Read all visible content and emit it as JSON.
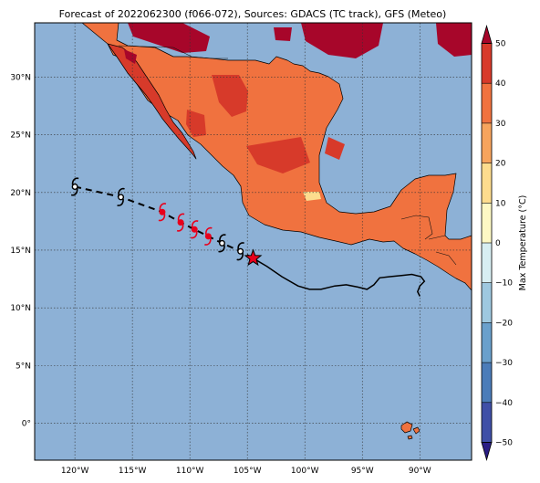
{
  "title": "Forecast of 2022062300 (f066-072), Sources: GDACS (TC track), GFS (Meteo)",
  "lon_ticks": [
    "120°W",
    "115°W",
    "110°W",
    "105°W",
    "100°W",
    "95°W",
    "90°W"
  ],
  "lat_ticks": [
    "30°N",
    "25°N",
    "20°N",
    "15°N",
    "10°N",
    "5°N",
    "0°"
  ],
  "colorbar": {
    "label": "Max Temperature (°C)",
    "ticks": [
      "50",
      "40",
      "30",
      "20",
      "10",
      "0",
      "−10",
      "−20",
      "−30",
      "−40",
      "−50"
    ],
    "colors": [
      "#2a1d84",
      "#3f4fa7",
      "#4b7cb9",
      "#6aa0cc",
      "#9ec8df",
      "#d7eef2",
      "#fdf8c4",
      "#fddc8e",
      "#f7a45d",
      "#f0723f",
      "#d73a2a",
      "#a7062a"
    ]
  },
  "map": {
    "ocean_color": "#8db1d6",
    "land_colors": [
      "#f0723f",
      "#d73a2a",
      "#a7062a",
      "#f7a45d",
      "#fddc8e"
    ],
    "extent": {
      "lon": [
        -123.5,
        -85.5
      ],
      "lat": [
        -3.2,
        34.7
      ]
    }
  },
  "tc_track": {
    "positions": [
      {
        "lon": -120.0,
        "lat": 20.5,
        "status": "past"
      },
      {
        "lon": -116.0,
        "lat": 19.6,
        "status": "past"
      },
      {
        "lon": -112.4,
        "lat": 18.3,
        "status": "forecast"
      },
      {
        "lon": -110.8,
        "lat": 17.4,
        "status": "forecast"
      },
      {
        "lon": -109.6,
        "lat": 16.8,
        "status": "forecast"
      },
      {
        "lon": -108.4,
        "lat": 16.2,
        "status": "forecast"
      },
      {
        "lon": -107.2,
        "lat": 15.6,
        "status": "past"
      },
      {
        "lon": -105.6,
        "lat": 14.9,
        "status": "past"
      },
      {
        "lon": -104.5,
        "lat": 14.3,
        "status": "current"
      }
    ],
    "past_path": [
      [
        -104.5,
        14.3
      ],
      [
        -103.3,
        13.6
      ],
      [
        -102.0,
        12.7
      ],
      [
        -100.6,
        11.9
      ],
      [
        -99.6,
        11.6
      ],
      [
        -98.6,
        11.6
      ],
      [
        -97.4,
        11.9
      ],
      [
        -96.4,
        12.0
      ],
      [
        -95.4,
        11.8
      ],
      [
        -94.6,
        11.6
      ],
      [
        -94.0,
        12.0
      ],
      [
        -93.5,
        12.6
      ],
      [
        -92.6,
        12.7
      ],
      [
        -91.6,
        12.8
      ],
      [
        -90.7,
        12.9
      ],
      [
        -89.9,
        12.7
      ],
      [
        -89.6,
        12.3
      ],
      [
        -90.0,
        11.9
      ],
      [
        -90.2,
        11.4
      ],
      [
        -90.0,
        11.0
      ]
    ]
  }
}
